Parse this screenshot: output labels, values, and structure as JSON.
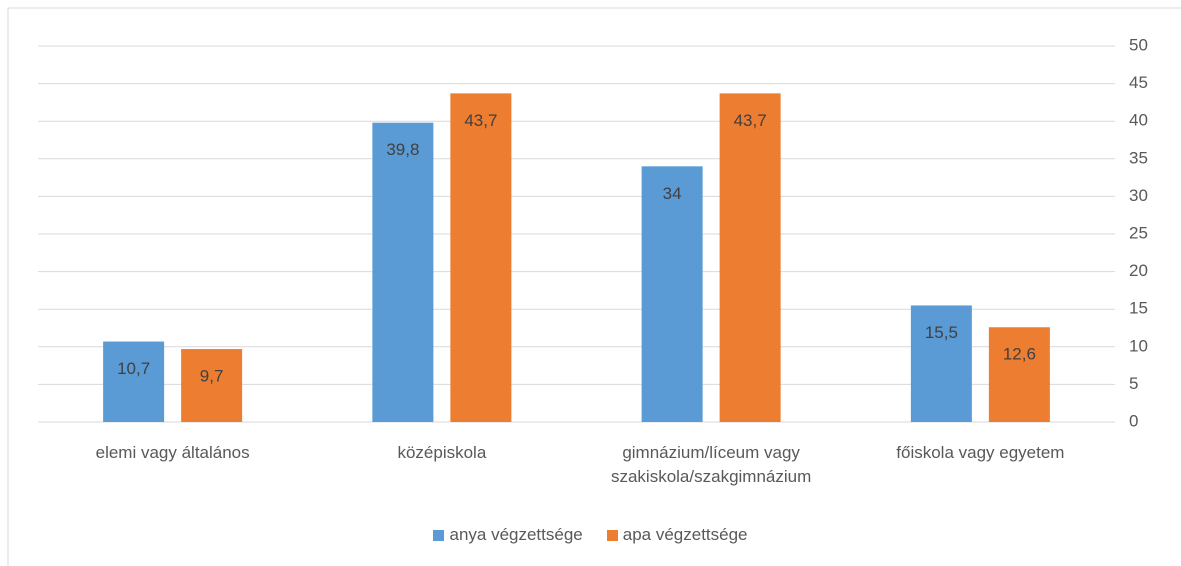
{
  "chart_data": {
    "type": "bar",
    "categories": [
      "elemi vagy általános",
      "középiskola",
      "gimnázium/líceum vagy szakiskola/szakgimnázium",
      "főiskola vagy egyetem"
    ],
    "series": [
      {
        "name": "anya végzettsége",
        "color": "#5b9bd5",
        "values": [
          10.7,
          39.8,
          34,
          15.5
        ],
        "value_labels": [
          "10,7",
          "39,8",
          "34",
          "15,5"
        ]
      },
      {
        "name": "apa végzettsége",
        "color": "#ed7d31",
        "values": [
          9.7,
          43.7,
          43.7,
          12.6
        ],
        "value_labels": [
          "9,7",
          "43,7",
          "43,7",
          "12,6"
        ]
      }
    ],
    "ylim": [
      0,
      50
    ],
    "yticks": [
      0,
      5,
      10,
      15,
      20,
      25,
      30,
      35,
      40,
      45,
      50
    ],
    "grid": true,
    "legend": "bottom"
  }
}
